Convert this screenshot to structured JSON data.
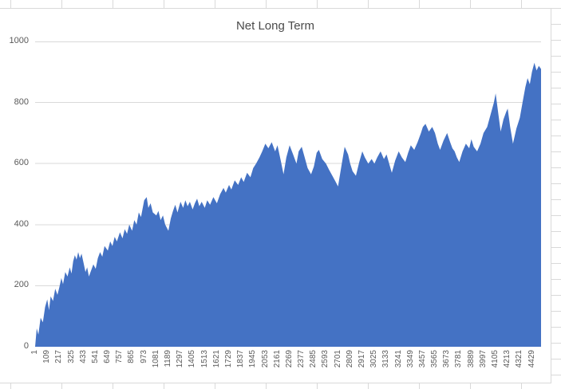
{
  "spreadsheet": {
    "grid_color": "#d9d9d9",
    "background": "#ffffff"
  },
  "chart": {
    "title": "Net Long Term",
    "area_color": "#4472C4",
    "gridline_color": "#d9d9d9",
    "axis_text_color": "#595959",
    "title_color": "#4a4a4a",
    "plot_background": "#ffffff"
  },
  "chart_data": {
    "type": "area",
    "title": "Net Long Term",
    "xlabel": "",
    "ylabel": "",
    "legend": "none",
    "grid": "horizontal",
    "ylim": [
      0,
      1000
    ],
    "y_ticks": [
      0,
      200,
      400,
      600,
      800,
      1000
    ],
    "x_tick_labels": [
      1,
      109,
      217,
      325,
      433,
      541,
      649,
      757,
      865,
      973,
      1081,
      1189,
      1297,
      1405,
      1513,
      1621,
      1729,
      1837,
      1945,
      2053,
      2161,
      2269,
      2377,
      2485,
      2593,
      2701,
      2809,
      2917,
      3025,
      3133,
      3241,
      3349,
      3457,
      3565,
      3673,
      3781,
      3889,
      3997,
      4105,
      4213,
      4321,
      4429
    ],
    "x": [
      1,
      15,
      30,
      50,
      70,
      90,
      109,
      125,
      140,
      160,
      180,
      200,
      217,
      235,
      250,
      270,
      290,
      310,
      325,
      340,
      355,
      370,
      385,
      400,
      415,
      433,
      450,
      465,
      480,
      500,
      520,
      541,
      560,
      580,
      600,
      620,
      649,
      670,
      690,
      710,
      730,
      757,
      780,
      800,
      820,
      840,
      865,
      885,
      905,
      925,
      945,
      973,
      995,
      1010,
      1030,
      1050,
      1081,
      1100,
      1120,
      1140,
      1160,
      1189,
      1210,
      1230,
      1250,
      1270,
      1297,
      1320,
      1340,
      1360,
      1380,
      1405,
      1425,
      1445,
      1465,
      1485,
      1513,
      1535,
      1560,
      1590,
      1621,
      1650,
      1680,
      1700,
      1729,
      1750,
      1780,
      1810,
      1837,
      1860,
      1890,
      1920,
      1945,
      1970,
      2000,
      2025,
      2053,
      2080,
      2110,
      2140,
      2161,
      2190,
      2215,
      2240,
      2269,
      2300,
      2330,
      2350,
      2377,
      2400,
      2430,
      2460,
      2485,
      2510,
      2530,
      2560,
      2593,
      2620,
      2650,
      2680,
      2701,
      2730,
      2760,
      2790,
      2809,
      2830,
      2860,
      2890,
      2917,
      2940,
      2970,
      3000,
      3025,
      3050,
      3080,
      3110,
      3133,
      3160,
      3180,
      3210,
      3241,
      3270,
      3300,
      3325,
      3349,
      3380,
      3410,
      3440,
      3457,
      3480,
      3510,
      3540,
      3565,
      3590,
      3610,
      3640,
      3673,
      3700,
      3720,
      3740,
      3760,
      3781,
      3810,
      3840,
      3870,
      3889,
      3910,
      3940,
      3970,
      3997,
      4030,
      4060,
      4090,
      4105,
      4130,
      4150,
      4175,
      4200,
      4213,
      4235,
      4260,
      4290,
      4321,
      4345,
      4370,
      4390,
      4410,
      4429,
      4450,
      4470,
      4490,
      4510
    ],
    "y": [
      0,
      60,
      40,
      95,
      80,
      130,
      155,
      120,
      165,
      150,
      190,
      170,
      195,
      225,
      205,
      245,
      230,
      260,
      240,
      280,
      300,
      285,
      310,
      290,
      305,
      275,
      245,
      260,
      230,
      250,
      270,
      255,
      290,
      310,
      295,
      330,
      315,
      345,
      330,
      360,
      345,
      375,
      355,
      385,
      370,
      400,
      380,
      415,
      400,
      440,
      425,
      480,
      490,
      455,
      470,
      440,
      430,
      445,
      415,
      430,
      400,
      380,
      420,
      445,
      465,
      440,
      475,
      455,
      480,
      460,
      475,
      450,
      470,
      485,
      460,
      475,
      455,
      480,
      465,
      490,
      470,
      500,
      520,
      505,
      530,
      515,
      545,
      530,
      555,
      540,
      570,
      555,
      585,
      600,
      620,
      640,
      665,
      650,
      670,
      640,
      660,
      610,
      565,
      620,
      660,
      630,
      600,
      640,
      655,
      625,
      585,
      565,
      590,
      635,
      645,
      615,
      600,
      580,
      560,
      540,
      525,
      590,
      655,
      630,
      600,
      575,
      560,
      605,
      640,
      620,
      600,
      615,
      600,
      620,
      640,
      615,
      630,
      595,
      570,
      610,
      640,
      620,
      605,
      635,
      660,
      645,
      670,
      700,
      720,
      730,
      705,
      720,
      700,
      665,
      645,
      675,
      700,
      670,
      650,
      640,
      620,
      605,
      640,
      665,
      650,
      680,
      655,
      640,
      665,
      700,
      720,
      760,
      800,
      830,
      760,
      705,
      745,
      770,
      780,
      720,
      665,
      715,
      750,
      800,
      850,
      880,
      860,
      900,
      930,
      905,
      920,
      910
    ]
  }
}
